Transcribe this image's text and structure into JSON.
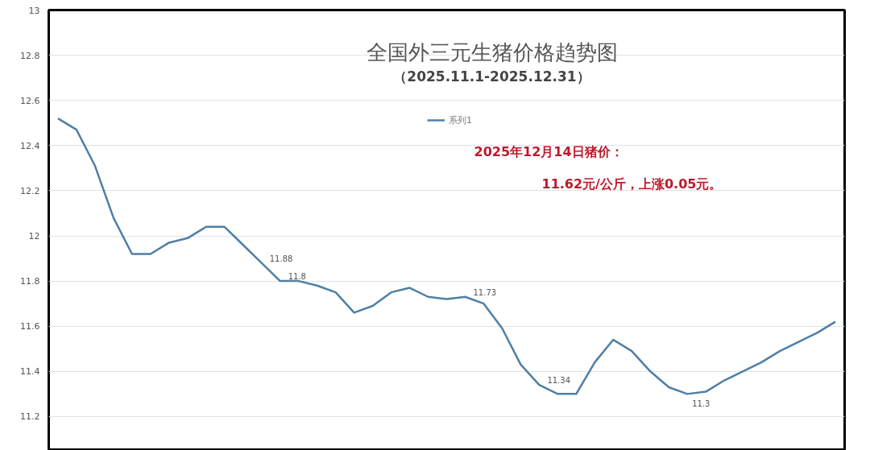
{
  "chart_data": {
    "type": "line",
    "title": "全国外三元生猪价格趋势图",
    "subtitle": "（2025.11.1-2025.12.31）",
    "annotations": [
      "2025年12月14日猪价：",
      "11.62元/公斤，上涨0.05元。"
    ],
    "categories": [
      null,
      null,
      null,
      null,
      null,
      null,
      null,
      null,
      null,
      null,
      null,
      null,
      null,
      null,
      null,
      null,
      null,
      null,
      null,
      null,
      null,
      null,
      null,
      null,
      null,
      null,
      null,
      null,
      null,
      null,
      null,
      null,
      null,
      null,
      null,
      null,
      null,
      null,
      null,
      null,
      null,
      null,
      null
    ],
    "series": [
      {
        "name": "系列1",
        "color": "#4f7fa6",
        "values": [
          12.52,
          12.47,
          12.31,
          12.08,
          11.92,
          11.92,
          11.97,
          11.99,
          12.04,
          12.04,
          11.96,
          11.88,
          11.8,
          11.8,
          11.78,
          11.75,
          11.66,
          11.69,
          11.75,
          11.77,
          11.73,
          11.72,
          11.73,
          11.7,
          11.59,
          11.43,
          11.34,
          11.3,
          11.3,
          11.44,
          11.54,
          11.49,
          11.4,
          11.33,
          11.3,
          11.31,
          11.36,
          11.4,
          11.44,
          11.49,
          11.53,
          11.57,
          11.62
        ],
        "value_labels": [
          null,
          null,
          null,
          null,
          null,
          null,
          null,
          null,
          null,
          null,
          null,
          "11.88",
          "11.8",
          null,
          null,
          null,
          null,
          null,
          null,
          null,
          null,
          null,
          "11.73",
          null,
          null,
          null,
          "11.34",
          null,
          null,
          null,
          null,
          null,
          null,
          null,
          "11.3",
          null,
          null,
          null,
          null,
          null,
          null,
          null,
          null
        ]
      }
    ],
    "ylim": [
      11.05,
      13
    ],
    "yticks": [
      11.2,
      11.4,
      11.6,
      11.8,
      12,
      12.2,
      12.4,
      12.6,
      12.8,
      13
    ],
    "grid": "y",
    "legend": "top",
    "marker": "none",
    "line_style": "solid"
  }
}
